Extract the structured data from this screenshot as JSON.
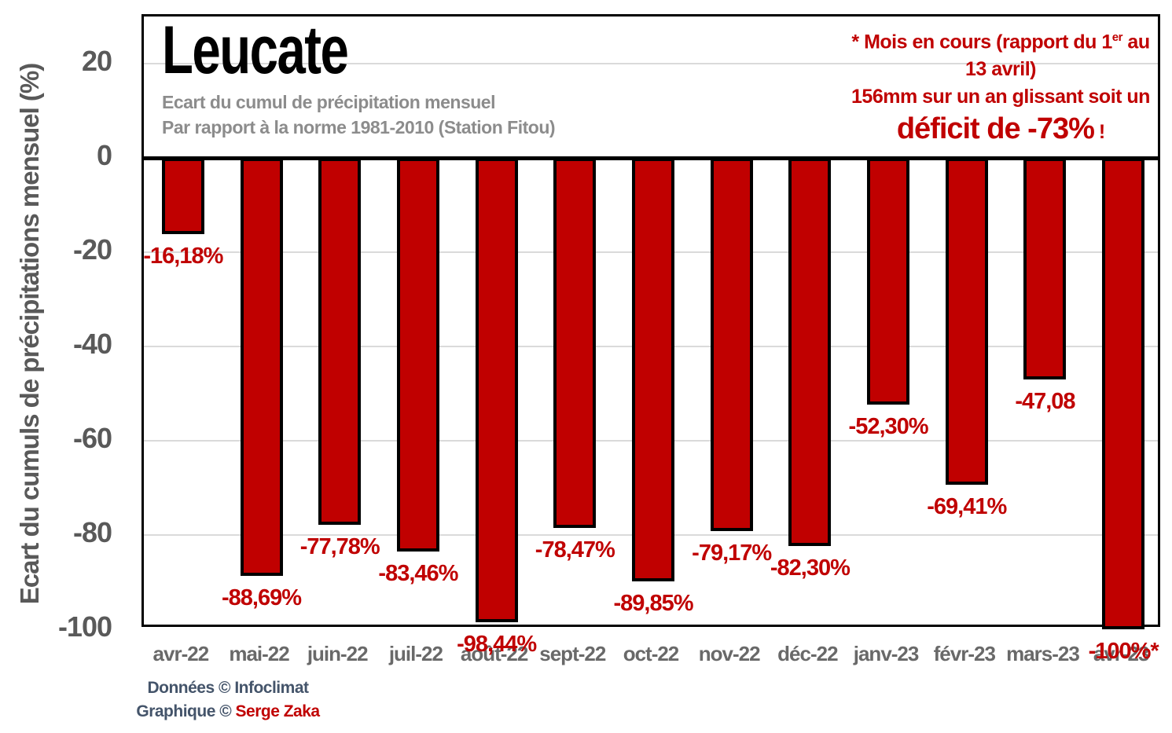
{
  "title": "Leucate",
  "subtitle_line1": "Ecart du cumul de précipitation mensuel",
  "subtitle_line2": "Par rapport à la norme 1981-2010 (Station Fitou)",
  "annotation": {
    "line1_prefix": "* Mois en cours (rapport du 1",
    "line1_sup": "er",
    "line1_suffix": " au",
    "line2": "13 avril)",
    "line3": "156mm sur un an glissant soit un",
    "line4_main": "déficit de -73%",
    "line4_suffix": " !",
    "color": "#C00000"
  },
  "footer": {
    "line1": "Données © Infoclimat",
    "line2_prefix": "Graphique © ",
    "line2_author": "Serge Zaka",
    "author_color": "#C00000"
  },
  "chart_data": {
    "type": "bar",
    "title": "Leucate",
    "subtitle": [
      "Ecart du cumul de précipitation mensuel",
      "Par rapport à la norme 1981-2010 (Station Fitou)"
    ],
    "categories": [
      "avr-22",
      "mai-22",
      "juin-22",
      "juil-22",
      "août-22",
      "sept-22",
      "oct-22",
      "nov-22",
      "déc-22",
      "janv-23",
      "févr-23",
      "mars-23",
      "avr-23"
    ],
    "values": [
      -16.18,
      -88.69,
      -77.78,
      -83.46,
      -98.44,
      -78.47,
      -89.85,
      -79.17,
      -82.3,
      -52.3,
      -69.41,
      -47.08,
      -100
    ],
    "value_labels": [
      "-16,18%",
      "-88,69%",
      "-77,78%",
      "-83,46%",
      "-98,44%",
      "-78,47%",
      "-89,85%",
      "-79,17%",
      "-82,30%",
      "-52,30%",
      "-69,41%",
      "-47,08",
      "-100%*"
    ],
    "xlabel": "",
    "ylabel": "Ecart du cumuls de précipitations mensuel (%)",
    "yticks": [
      20,
      0,
      -20,
      -40,
      -60,
      -80,
      -100
    ],
    "ylim": [
      -100,
      30
    ],
    "grid": true,
    "gridline_color": "#DADADA",
    "zero_line_color": "#000000",
    "bar_color": "#C00000",
    "bar_border_color": "#000000",
    "value_label_color": "#C00000",
    "legend": "none"
  }
}
